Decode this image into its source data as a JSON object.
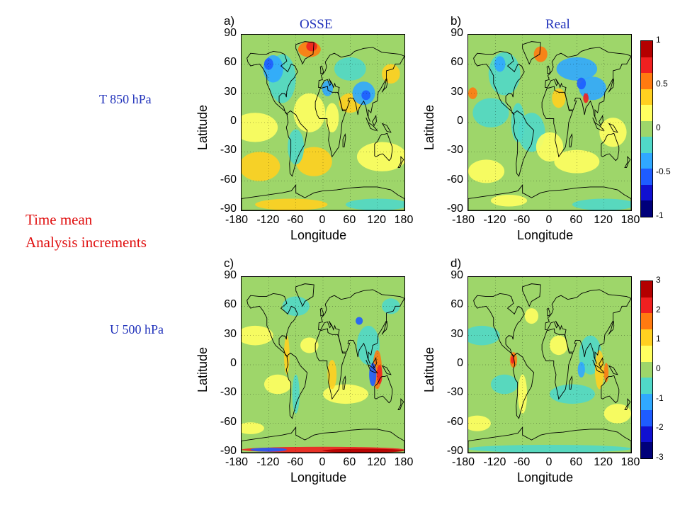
{
  "headers": {
    "col_osse": "OSSE",
    "col_real": "Real"
  },
  "row_labels": {
    "top": "T 850 hPa",
    "bottom": "U  500 hPa"
  },
  "side_title": {
    "line1": "Time mean",
    "line2": "Analysis increments"
  },
  "panels": {
    "a": {
      "letter": "a)"
    },
    "b": {
      "letter": "b)"
    },
    "c": {
      "letter": "c)"
    },
    "d": {
      "letter": "d)"
    }
  },
  "axes": {
    "x_title": "Longitude",
    "y_title": "Latitude",
    "y_ticks": [
      "90",
      "60",
      "30",
      "0",
      "-30",
      "-60",
      "-90"
    ],
    "x_ticks": [
      "-180",
      "-120",
      "-60",
      "0",
      "60",
      "120",
      "180"
    ]
  },
  "colorbar_top": {
    "ticks": [
      "1",
      "0.5",
      "0",
      "-0.5",
      "-1"
    ],
    "colors": [
      "#b40000",
      "#f02020",
      "#ff7a10",
      "#ffd020",
      "#ffff60",
      "#9ed66a",
      "#50d8c8",
      "#30a8ff",
      "#1e5cff",
      "#1010d0",
      "#00007a"
    ]
  },
  "colorbar_bottom": {
    "ticks": [
      "3",
      "2",
      "1",
      "0",
      "-1",
      "-2",
      "-3"
    ],
    "colors": [
      "#b40000",
      "#f02020",
      "#ff7a10",
      "#ffd020",
      "#ffff60",
      "#9ed66a",
      "#50d8c8",
      "#30a8ff",
      "#1e5cff",
      "#1010d0",
      "#00007a"
    ]
  }
}
